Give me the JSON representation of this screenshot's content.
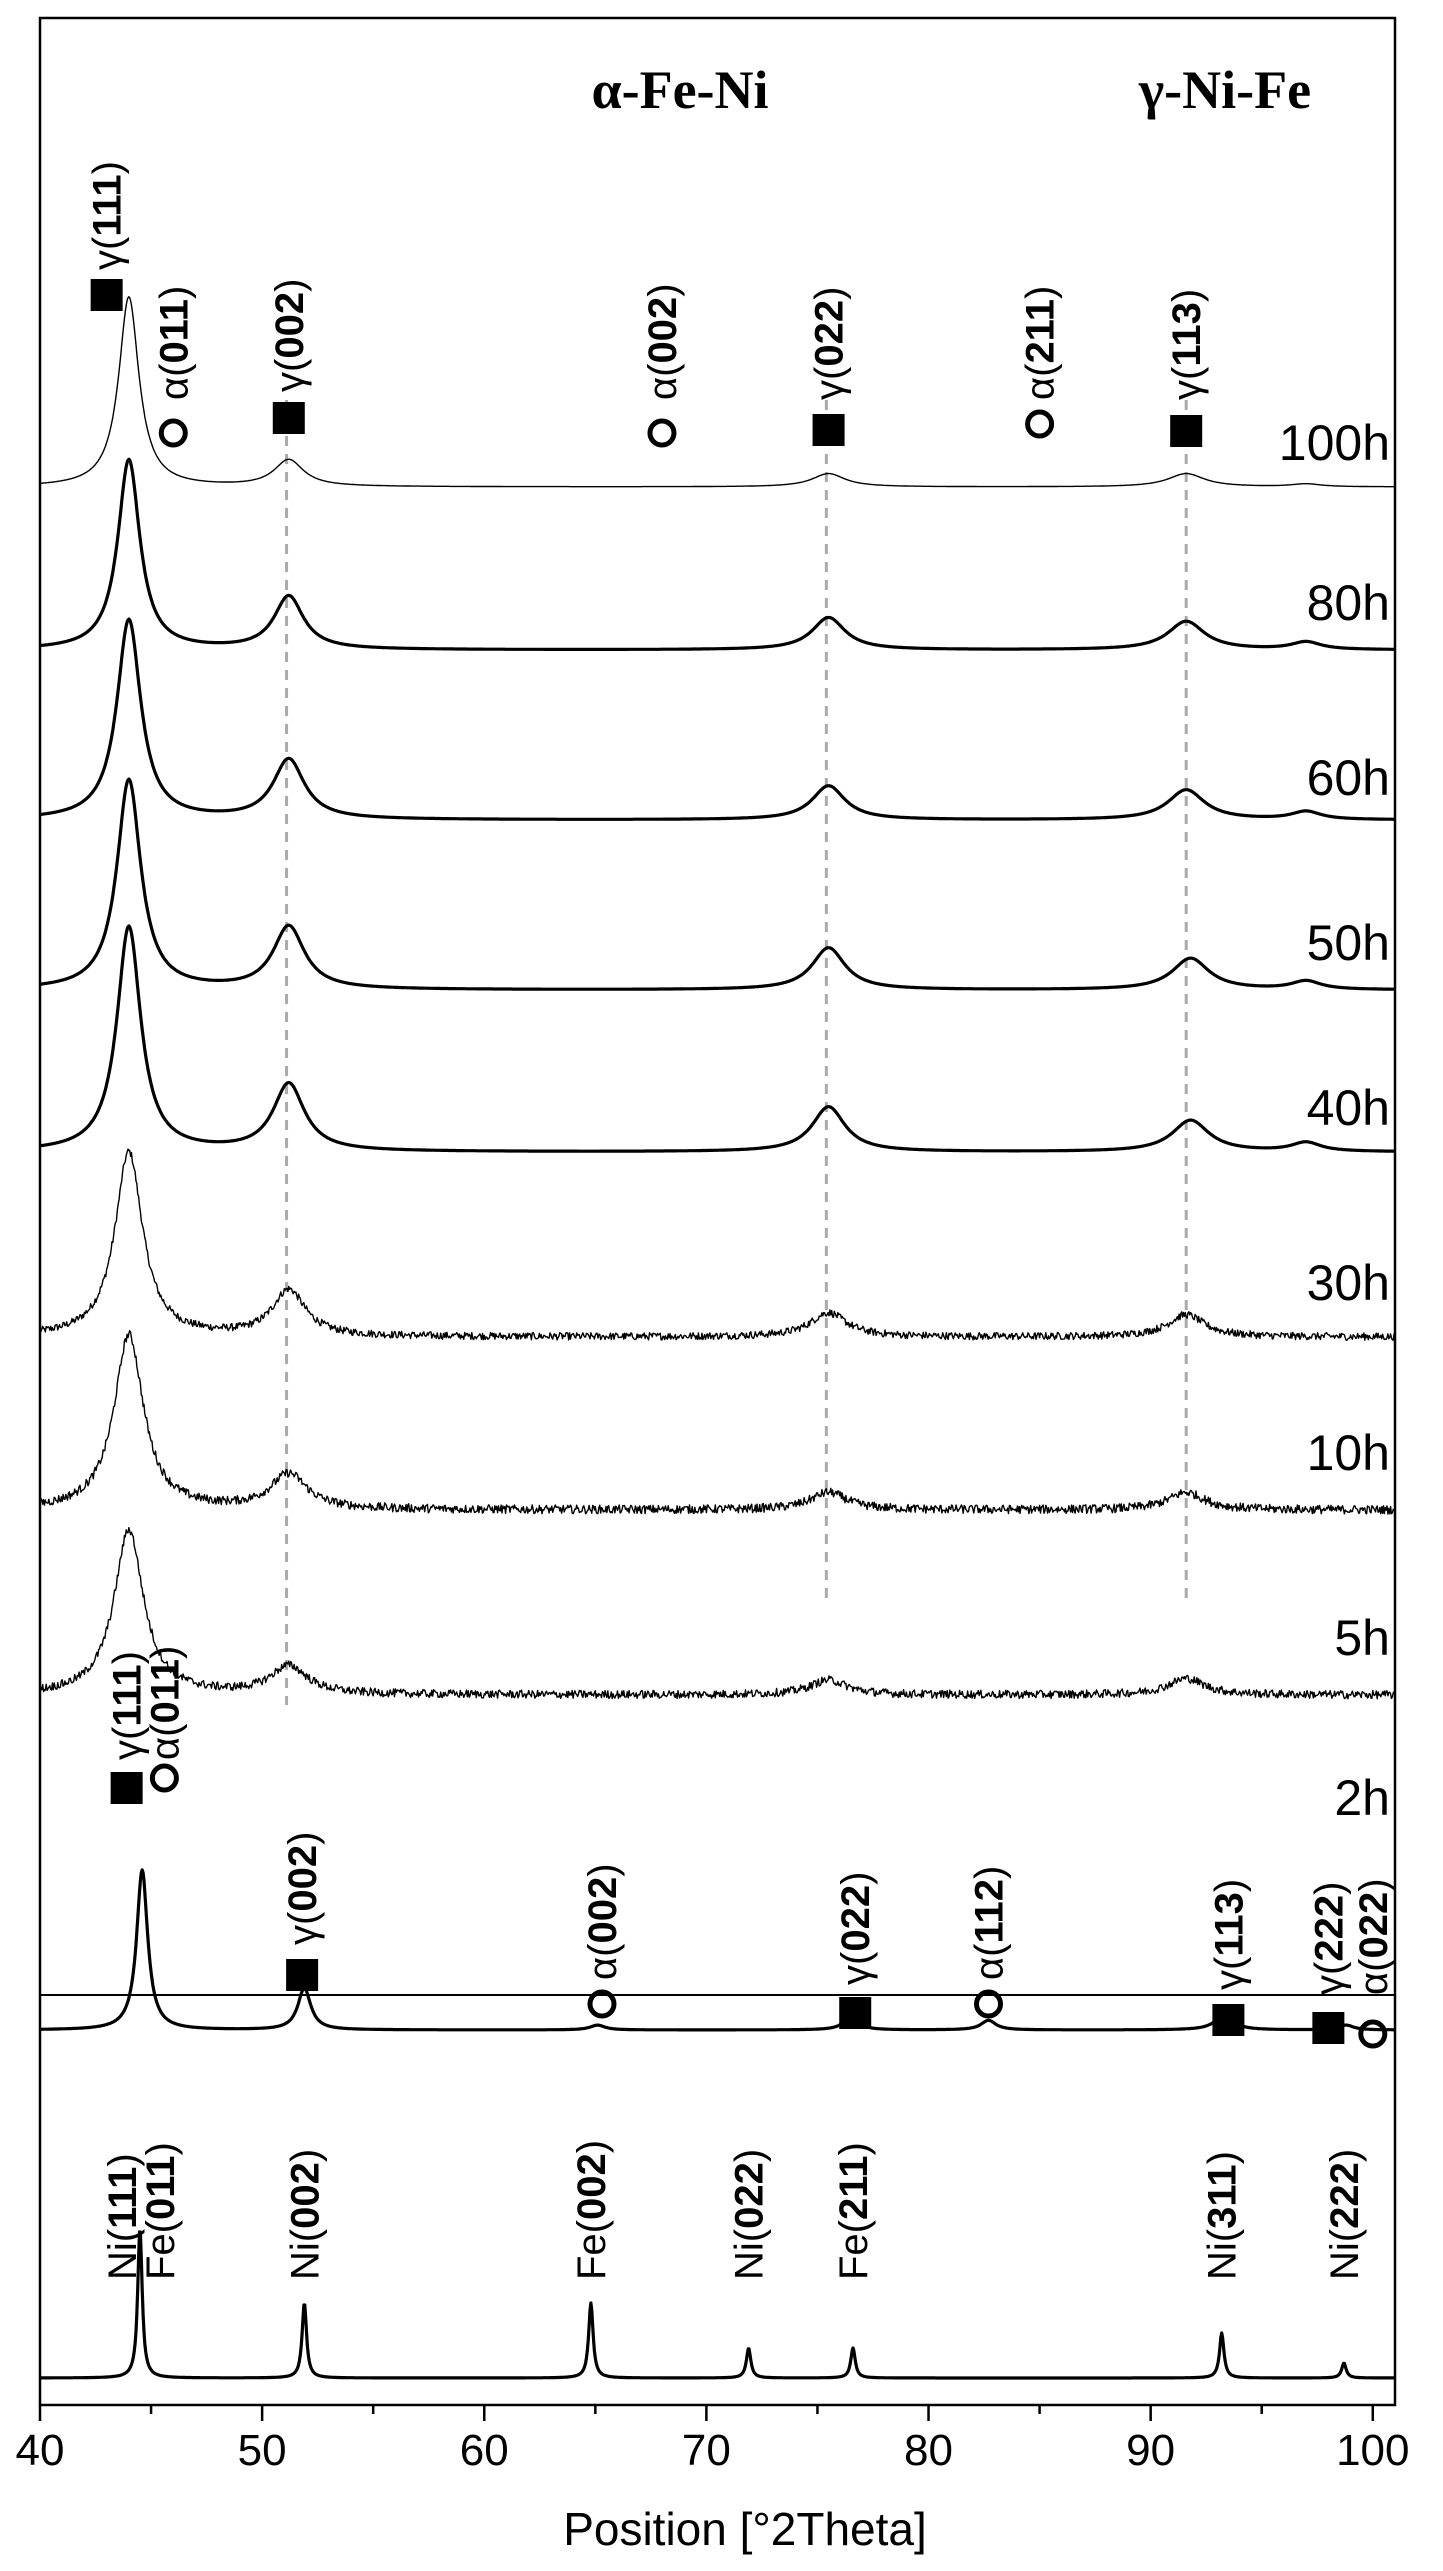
{
  "chart_data": {
    "type": "line",
    "title": "",
    "xlabel": "Position [°2Theta]",
    "ylabel": "",
    "xlim": [
      40,
      101
    ],
    "x_ticks": [
      "40",
      "50",
      "60",
      "70",
      "80",
      "90",
      "100"
    ],
    "phase_titles": [
      "α-Fe-Ni",
      "γ-Ni-Fe"
    ],
    "legend_position": "none",
    "grid": false,
    "reference_lines": [
      51.1,
      75.4,
      91.6
    ],
    "series": [
      {
        "name": "100h",
        "line_weight": "thin",
        "noise": 0.0,
        "peaks": [
          [
            44.0,
            1.0,
            0.55
          ],
          [
            51.2,
            0.14,
            0.8
          ],
          [
            75.5,
            0.07,
            0.9
          ],
          [
            91.6,
            0.07,
            1.0
          ],
          [
            97.0,
            0.015,
            0.8
          ]
        ]
      },
      {
        "name": "80h",
        "line_weight": "thick",
        "noise": 0.0,
        "peaks": [
          [
            44.0,
            1.0,
            0.6
          ],
          [
            51.2,
            0.28,
            0.8
          ],
          [
            75.5,
            0.17,
            0.9
          ],
          [
            91.6,
            0.15,
            1.0
          ],
          [
            97.0,
            0.04,
            0.8
          ]
        ]
      },
      {
        "name": "60h",
        "line_weight": "thick",
        "noise": 0.0,
        "peaks": [
          [
            44.0,
            1.0,
            0.65
          ],
          [
            51.2,
            0.3,
            0.85
          ],
          [
            75.5,
            0.17,
            0.9
          ],
          [
            91.6,
            0.15,
            1.0
          ],
          [
            97.0,
            0.04,
            0.8
          ]
        ]
      },
      {
        "name": "50h",
        "line_weight": "thick",
        "noise": 0.0,
        "peaks": [
          [
            44.0,
            1.0,
            0.65
          ],
          [
            51.2,
            0.3,
            0.85
          ],
          [
            75.5,
            0.2,
            0.9
          ],
          [
            91.8,
            0.15,
            1.0
          ],
          [
            97.0,
            0.04,
            0.8
          ]
        ]
      },
      {
        "name": "40h",
        "line_weight": "thick",
        "noise": 0.0,
        "peaks": [
          [
            44.0,
            1.0,
            0.65
          ],
          [
            51.2,
            0.3,
            0.85
          ],
          [
            75.5,
            0.2,
            0.9
          ],
          [
            91.8,
            0.14,
            1.0
          ],
          [
            97.0,
            0.04,
            0.8
          ]
        ]
      },
      {
        "name": "30h",
        "line_weight": "thin",
        "noise": 0.02,
        "peaks": [
          [
            44.0,
            1.0,
            0.75
          ],
          [
            51.2,
            0.25,
            0.9
          ],
          [
            75.5,
            0.13,
            1.0
          ],
          [
            91.6,
            0.12,
            1.0
          ]
        ]
      },
      {
        "name": "10h",
        "line_weight": "thin",
        "noise": 0.025,
        "peaks": [
          [
            44.0,
            1.0,
            0.8
          ],
          [
            51.2,
            0.2,
            1.0
          ],
          [
            75.5,
            0.1,
            1.0
          ],
          [
            91.6,
            0.1,
            1.0
          ]
        ]
      },
      {
        "name": "5h",
        "line_weight": "thin",
        "noise": 0.025,
        "peaks": [
          [
            44.0,
            1.0,
            0.8
          ],
          [
            51.2,
            0.17,
            1.0
          ],
          [
            75.5,
            0.09,
            1.0
          ],
          [
            91.6,
            0.1,
            1.0
          ]
        ]
      },
      {
        "name": "2h",
        "line_weight": "thick",
        "noise": 0.0,
        "peaks": [
          [
            44.6,
            1.0,
            0.3
          ],
          [
            51.9,
            0.26,
            0.35
          ],
          [
            65.1,
            0.03,
            0.4
          ],
          [
            76.5,
            0.08,
            0.4
          ],
          [
            82.7,
            0.06,
            0.4
          ],
          [
            93.3,
            0.09,
            0.5
          ],
          [
            98.8,
            0.03,
            0.4
          ]
        ]
      },
      {
        "name": "",
        "line_weight": "thick",
        "noise": 0.0,
        "peaks": [
          [
            44.5,
            1.0,
            0.12
          ],
          [
            51.9,
            0.5,
            0.12
          ],
          [
            64.8,
            0.5,
            0.12
          ],
          [
            71.9,
            0.2,
            0.12
          ],
          [
            76.6,
            0.2,
            0.12
          ],
          [
            93.2,
            0.3,
            0.12
          ],
          [
            98.7,
            0.1,
            0.12
          ]
        ]
      }
    ],
    "annotations": {
      "set_100h": [
        {
          "x": 43.0,
          "greek": "γ",
          "hkl": "(111)",
          "marker": "square"
        },
        {
          "x": 46.0,
          "greek": "α",
          "hkl": "(011)",
          "marker": "circle"
        },
        {
          "x": 51.2,
          "greek": "γ",
          "hkl": "(002)",
          "marker": "square"
        },
        {
          "x": 68.0,
          "greek": "α",
          "hkl": "(002)",
          "marker": "circle"
        },
        {
          "x": 75.5,
          "greek": "γ",
          "hkl": "(022)",
          "marker": "square"
        },
        {
          "x": 85.0,
          "greek": "α",
          "hkl": "(211)",
          "marker": "circle"
        },
        {
          "x": 91.6,
          "greek": "γ",
          "hkl": "(113)",
          "marker": "square"
        }
      ],
      "set_2h": [
        {
          "x": 43.9,
          "greek": "γ",
          "hkl": "(111)",
          "marker": "square"
        },
        {
          "x": 45.6,
          "greek": "α",
          "hkl": "(011)",
          "marker": "circle"
        },
        {
          "x": 51.8,
          "greek": "γ",
          "hkl": "(002)",
          "marker": "square"
        },
        {
          "x": 65.3,
          "greek": "α",
          "hkl": "(002)",
          "marker": "circle"
        },
        {
          "x": 76.7,
          "greek": "γ",
          "hkl": "(022)",
          "marker": "square"
        },
        {
          "x": 82.7,
          "greek": "α",
          "hkl": "(112)",
          "marker": "circle"
        },
        {
          "x": 93.5,
          "greek": "γ",
          "hkl": "(113)",
          "marker": "square"
        },
        {
          "x": 98.0,
          "greek": "γ",
          "hkl": "(222)",
          "marker": "square"
        },
        {
          "x": 100.0,
          "greek": "α",
          "hkl": "(022)",
          "marker": "circle"
        }
      ],
      "set_ref": [
        {
          "x": 43.7,
          "text": "Ni(111)"
        },
        {
          "x": 45.4,
          "text": "Fe(011)"
        },
        {
          "x": 51.9,
          "text": "Ni(002)"
        },
        {
          "x": 64.8,
          "text": "Fe(002)"
        },
        {
          "x": 71.9,
          "text": "Ni(022)"
        },
        {
          "x": 76.6,
          "text": "Fe(211)"
        },
        {
          "x": 93.2,
          "text": "Ni(311)"
        },
        {
          "x": 98.7,
          "text": "Ni(222)"
        }
      ]
    }
  }
}
